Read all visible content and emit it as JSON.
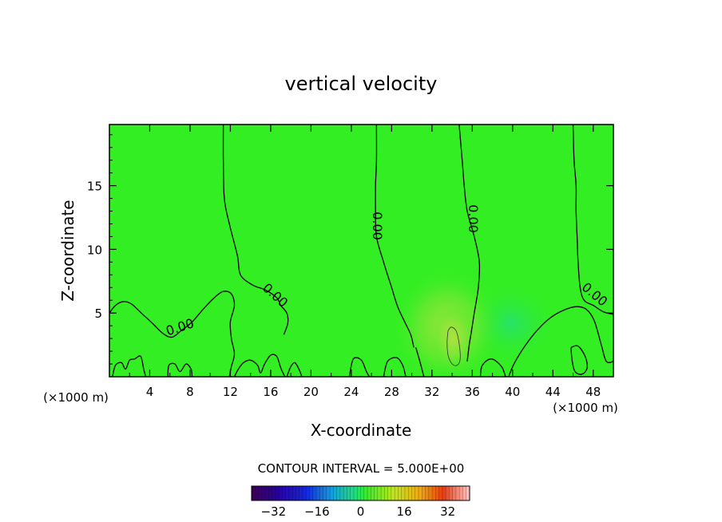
{
  "chart_data": {
    "type": "heatmap",
    "title": "vertical velocity",
    "xlabel": "X-coordinate",
    "ylabel": "Z-coordinate",
    "x_unit_left": "(×1000 m)",
    "x_unit_right": "(×1000 m)",
    "xlim": [
      0,
      50
    ],
    "ylim": [
      0,
      19.8
    ],
    "x_ticks": [
      4,
      8,
      12,
      16,
      20,
      24,
      28,
      32,
      36,
      40,
      44,
      48
    ],
    "y_ticks": [
      5,
      10,
      15
    ],
    "contour_interval_text": "CONTOUR INTERVAL = 5.000E+00",
    "contour_labels": [
      "0.00",
      "0.00",
      "0.00",
      "0.00",
      "0.00"
    ],
    "colorbar": {
      "range": [
        -40,
        40
      ],
      "ticks": [
        -32,
        -16,
        0,
        16,
        32
      ]
    },
    "colors": {
      "field_base": "#33ee22",
      "warm_anomaly": "#99e43a",
      "cool_anomaly": "#22e07a"
    },
    "zero_contours": [
      {
        "points": [
          [
            11.3,
            19.8
          ],
          [
            11.3,
            17
          ],
          [
            11.4,
            14
          ],
          [
            11.9,
            12
          ],
          [
            12.7,
            9.5
          ],
          [
            13.0,
            8
          ],
          [
            14.2,
            7.2
          ],
          [
            15.5,
            6.8
          ],
          [
            16.6,
            6.2
          ],
          [
            17.0,
            5.6
          ],
          [
            17.6,
            5.0
          ],
          [
            17.7,
            4.2
          ],
          [
            17.3,
            3.3
          ]
        ]
      },
      {
        "points": [
          [
            26.5,
            19.8
          ],
          [
            26.5,
            17
          ],
          [
            26.4,
            15
          ],
          [
            26.4,
            13
          ],
          [
            26.5,
            11
          ],
          [
            27.2,
            9
          ],
          [
            28.0,
            7
          ],
          [
            28.6,
            5.5
          ],
          [
            29.3,
            4.3
          ],
          [
            29.9,
            3.3
          ],
          [
            30.2,
            2.3
          ]
        ]
      },
      {
        "points": [
          [
            34.7,
            19.8
          ],
          [
            35.0,
            17
          ],
          [
            35.2,
            15
          ],
          [
            35.5,
            13
          ],
          [
            36.2,
            11
          ],
          [
            36.7,
            9
          ],
          [
            36.6,
            7
          ],
          [
            36.2,
            5
          ],
          [
            35.9,
            3.5
          ],
          [
            35.7,
            2.5
          ],
          [
            35.5,
            1.2
          ]
        ]
      },
      {
        "points": [
          [
            46.0,
            19.8
          ],
          [
            46.1,
            17
          ],
          [
            46.3,
            15
          ],
          [
            46.3,
            13
          ],
          [
            46.4,
            11
          ],
          [
            46.5,
            9
          ],
          [
            46.7,
            7
          ],
          [
            47.1,
            6.0
          ],
          [
            48.0,
            5.6
          ],
          [
            49.0,
            5.1
          ],
          [
            50.0,
            4.9
          ]
        ]
      },
      {
        "points": [
          [
            0,
            5.0
          ],
          [
            0.6,
            5.6
          ],
          [
            1.4,
            5.9
          ],
          [
            2.2,
            5.7
          ],
          [
            3.3,
            4.9
          ],
          [
            4.4,
            4.1
          ],
          [
            5.3,
            3.4
          ],
          [
            6.2,
            3.1
          ],
          [
            7.1,
            3.6
          ],
          [
            8.2,
            4.3
          ],
          [
            9.3,
            5.3
          ],
          [
            10.4,
            6.2
          ],
          [
            11.3,
            6.7
          ],
          [
            12.1,
            6.5
          ],
          [
            12.4,
            5.6
          ],
          [
            12.0,
            4.3
          ],
          [
            12.1,
            3.0
          ],
          [
            12.4,
            1.8
          ],
          [
            12.1,
            0.8
          ],
          [
            11.9,
            0
          ]
        ]
      },
      {
        "points": [
          [
            36.8,
            0
          ],
          [
            37.0,
            0.9
          ],
          [
            37.9,
            1.4
          ],
          [
            38.9,
            0.8
          ],
          [
            39.3,
            0
          ]
        ]
      },
      {
        "points": [
          [
            39.6,
            0
          ],
          [
            40.2,
            1.1
          ],
          [
            41.3,
            2.5
          ],
          [
            42.5,
            3.7
          ],
          [
            43.7,
            4.6
          ],
          [
            45.0,
            5.2
          ],
          [
            46.3,
            5.5
          ],
          [
            47.3,
            5.3
          ],
          [
            48.1,
            4.4
          ],
          [
            48.8,
            2.5
          ],
          [
            49.3,
            1.2
          ],
          [
            50.0,
            1.2
          ]
        ]
      },
      {
        "points": [
          [
            0.3,
            0
          ],
          [
            0.6,
            0.9
          ],
          [
            1.2,
            1.1
          ],
          [
            1.6,
            0.6
          ],
          [
            2.0,
            1.3
          ],
          [
            2.5,
            1.4
          ],
          [
            3.1,
            1.6
          ],
          [
            3.4,
            0.6
          ],
          [
            3.6,
            0
          ]
        ]
      },
      {
        "points": [
          [
            5.8,
            0
          ],
          [
            5.9,
            0.9
          ],
          [
            6.5,
            1.0
          ],
          [
            7.0,
            0.4
          ],
          [
            7.6,
            1.0
          ],
          [
            8.1,
            0.6
          ],
          [
            8.2,
            0
          ]
        ]
      },
      {
        "points": [
          [
            12.4,
            0
          ],
          [
            12.8,
            0.6
          ],
          [
            13.3,
            1.1
          ],
          [
            14.0,
            1.3
          ],
          [
            14.7,
            0.9
          ],
          [
            15.0,
            0.3
          ],
          [
            15.4,
            1.0
          ],
          [
            16.0,
            1.7
          ],
          [
            16.6,
            1.6
          ],
          [
            17.0,
            0.7
          ],
          [
            17.4,
            0
          ]
        ]
      },
      {
        "points": [
          [
            17.6,
            0
          ],
          [
            18.0,
            0.8
          ],
          [
            18.4,
            1.1
          ],
          [
            18.8,
            0.6
          ],
          [
            19.1,
            0
          ]
        ]
      },
      {
        "points": [
          [
            23.8,
            0
          ],
          [
            24.2,
            1.4
          ],
          [
            25.0,
            1.3
          ],
          [
            25.5,
            0.4
          ],
          [
            25.8,
            0
          ]
        ]
      },
      {
        "points": [
          [
            27.2,
            0
          ],
          [
            27.6,
            1.2
          ],
          [
            28.5,
            1.5
          ],
          [
            29.1,
            0.9
          ],
          [
            29.4,
            0
          ]
        ]
      },
      {
        "points": [
          [
            30.4,
            2.3
          ],
          [
            30.8,
            1.2
          ],
          [
            31.2,
            0
          ]
        ]
      },
      {
        "points": [
          [
            45.8,
            2.3
          ],
          [
            46.5,
            2.4
          ],
          [
            47.2,
            1.6
          ],
          [
            47.4,
            0.7
          ],
          [
            46.9,
            0.2
          ],
          [
            46.2,
            0.4
          ],
          [
            45.9,
            1.3
          ],
          [
            45.8,
            2.3
          ]
        ]
      }
    ],
    "interval_contours": [
      {
        "points": [
          [
            33.6,
            3.6
          ],
          [
            33.9,
            3.9
          ],
          [
            34.4,
            3.6
          ],
          [
            34.7,
            2.6
          ],
          [
            34.8,
            1.4
          ],
          [
            34.5,
            0.9
          ],
          [
            34.0,
            1.0
          ],
          [
            33.6,
            1.7
          ],
          [
            33.5,
            2.7
          ],
          [
            33.6,
            3.6
          ]
        ]
      }
    ]
  }
}
